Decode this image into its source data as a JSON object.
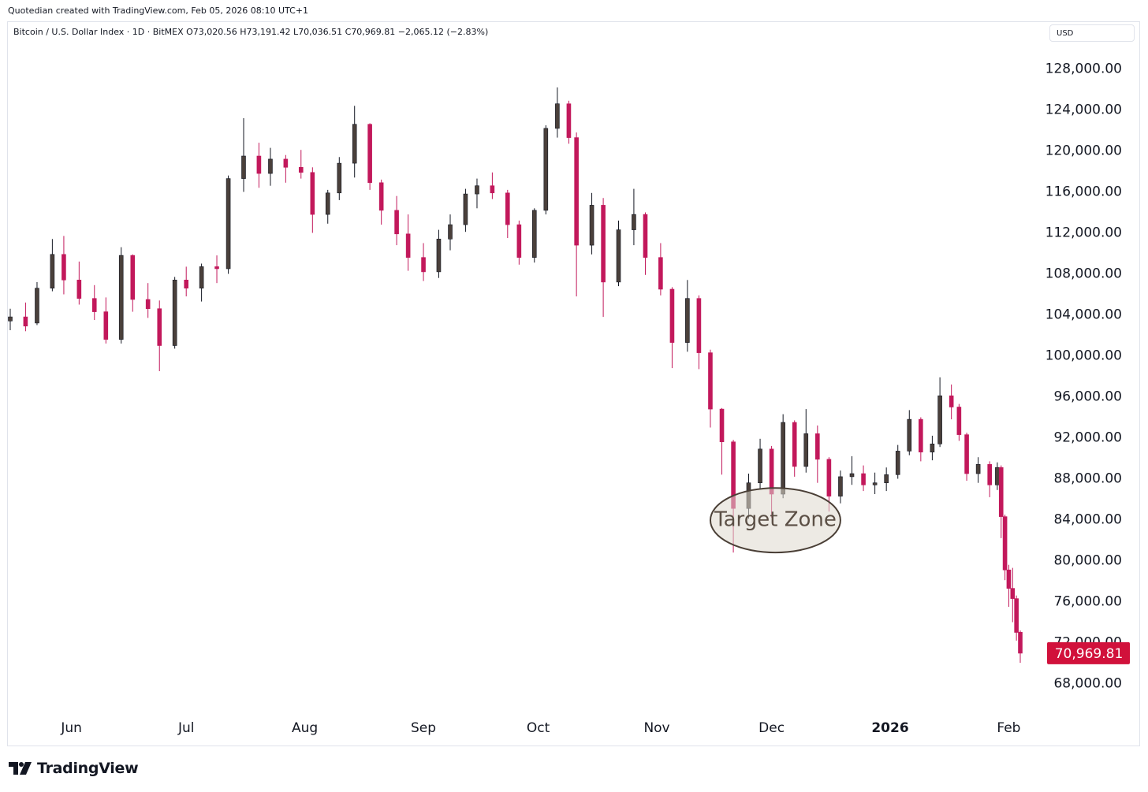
{
  "header": {
    "credit": "Quotedian created with TradingView.com, Feb 05, 2026 08:10 UTC+1",
    "symbol_line": "Bitcoin / U.S. Dollar Index · 1D · BitMEX  O73,020.56  H73,191.42  L70,036.51  C70,969.81  −2,065.12 (−2.83%)",
    "currency": "USD"
  },
  "footer": {
    "logo_text": "TradingView"
  },
  "colors": {
    "up": "#131722",
    "down": "#c2185b",
    "last_price_bg": "#d1113b",
    "grid": "#ffffff"
  },
  "chart_data": {
    "type": "candlestick",
    "title": "Bitcoin / U.S. Dollar Index · 1D · BitMEX",
    "last_price": {
      "value": 70969.81,
      "label": "70,969.81"
    },
    "ylim": [
      65500,
      130500
    ],
    "y_ticks": [
      68000,
      72000,
      76000,
      80000,
      84000,
      88000,
      92000,
      96000,
      100000,
      104000,
      108000,
      112000,
      116000,
      120000,
      124000,
      128000
    ],
    "y_tick_labels": [
      "68,000.00",
      "72,000.00",
      "76,000.00",
      "80,000.00",
      "84,000.00",
      "88,000.00",
      "92,000.00",
      "96,000.00",
      "100,000.00",
      "104,000.00",
      "108,000.00",
      "112,000.00",
      "116,000.00",
      "120,000.00",
      "124,000.00",
      "128,000.00"
    ],
    "x_labels": [
      {
        "label": "Jun",
        "date": "2025-06-01",
        "bold": false
      },
      {
        "label": "Jul",
        "date": "2025-07-01",
        "bold": false
      },
      {
        "label": "Aug",
        "date": "2025-08-01",
        "bold": false
      },
      {
        "label": "Sep",
        "date": "2025-09-01",
        "bold": false
      },
      {
        "label": "Oct",
        "date": "2025-10-01",
        "bold": false
      },
      {
        "label": "Nov",
        "date": "2025-11-01",
        "bold": false
      },
      {
        "label": "Dec",
        "date": "2025-12-01",
        "bold": false
      },
      {
        "label": "2026",
        "date": "2026-01-01",
        "bold": true
      },
      {
        "label": "Feb",
        "date": "2026-02-01",
        "bold": false
      }
    ],
    "x_range": [
      "2025-05-16",
      "2026-02-04"
    ],
    "annotation": {
      "text": "Target Zone",
      "date_from": "2025-11-15",
      "date_to": "2025-12-19",
      "price_low": 80800,
      "price_high": 87100
    },
    "series": [
      {
        "date": "2025-05-16",
        "open": 103400,
        "high": 104600,
        "low": 102500,
        "close": 103800
      },
      {
        "date": "2025-05-20",
        "open": 103800,
        "high": 105200,
        "low": 102400,
        "close": 102900
      },
      {
        "date": "2025-05-23",
        "open": 103200,
        "high": 107200,
        "low": 103000,
        "close": 106600
      },
      {
        "date": "2025-05-27",
        "open": 106600,
        "high": 111400,
        "low": 106300,
        "close": 109900
      },
      {
        "date": "2025-05-30",
        "open": 109900,
        "high": 111700,
        "low": 106000,
        "close": 107400
      },
      {
        "date": "2025-06-03",
        "open": 107400,
        "high": 109200,
        "low": 105000,
        "close": 105600
      },
      {
        "date": "2025-06-07",
        "open": 105600,
        "high": 106900,
        "low": 103500,
        "close": 104300
      },
      {
        "date": "2025-06-10",
        "open": 104300,
        "high": 105700,
        "low": 101200,
        "close": 101600
      },
      {
        "date": "2025-06-14",
        "open": 101600,
        "high": 110600,
        "low": 101200,
        "close": 109800
      },
      {
        "date": "2025-06-17",
        "open": 109800,
        "high": 109900,
        "low": 104300,
        "close": 105500
      },
      {
        "date": "2025-06-21",
        "open": 105500,
        "high": 107100,
        "low": 103700,
        "close": 104600
      },
      {
        "date": "2025-06-24",
        "open": 104600,
        "high": 105400,
        "low": 98500,
        "close": 101000
      },
      {
        "date": "2025-06-28",
        "open": 101000,
        "high": 107700,
        "low": 100700,
        "close": 107400
      },
      {
        "date": "2025-07-01",
        "open": 107400,
        "high": 108700,
        "low": 105800,
        "close": 106600
      },
      {
        "date": "2025-07-05",
        "open": 106600,
        "high": 109000,
        "low": 105300,
        "close": 108700
      },
      {
        "date": "2025-07-09",
        "open": 108700,
        "high": 109800,
        "low": 107100,
        "close": 108500
      },
      {
        "date": "2025-07-12",
        "open": 108500,
        "high": 117600,
        "low": 108000,
        "close": 117300
      },
      {
        "date": "2025-07-16",
        "open": 117300,
        "high": 123200,
        "low": 116000,
        "close": 119500
      },
      {
        "date": "2025-07-20",
        "open": 119500,
        "high": 120800,
        "low": 116400,
        "close": 117800
      },
      {
        "date": "2025-07-23",
        "open": 117800,
        "high": 120300,
        "low": 116600,
        "close": 119200
      },
      {
        "date": "2025-07-27",
        "open": 119200,
        "high": 119600,
        "low": 116900,
        "close": 118400
      },
      {
        "date": "2025-07-31",
        "open": 118400,
        "high": 120100,
        "low": 117300,
        "close": 117900
      },
      {
        "date": "2025-08-03",
        "open": 117900,
        "high": 118400,
        "low": 112000,
        "close": 113800
      },
      {
        "date": "2025-08-07",
        "open": 113800,
        "high": 116200,
        "low": 112900,
        "close": 115900
      },
      {
        "date": "2025-08-10",
        "open": 115900,
        "high": 119400,
        "low": 115200,
        "close": 118800
      },
      {
        "date": "2025-08-14",
        "open": 118800,
        "high": 124400,
        "low": 117400,
        "close": 122600
      },
      {
        "date": "2025-08-18",
        "open": 122600,
        "high": 122700,
        "low": 116200,
        "close": 116900
      },
      {
        "date": "2025-08-21",
        "open": 116900,
        "high": 117200,
        "low": 112800,
        "close": 114200
      },
      {
        "date": "2025-08-25",
        "open": 114200,
        "high": 115600,
        "low": 110800,
        "close": 111900
      },
      {
        "date": "2025-08-28",
        "open": 111900,
        "high": 113800,
        "low": 108300,
        "close": 109600
      },
      {
        "date": "2025-09-01",
        "open": 109600,
        "high": 111000,
        "low": 107300,
        "close": 108200
      },
      {
        "date": "2025-09-05",
        "open": 108200,
        "high": 112300,
        "low": 107600,
        "close": 111400
      },
      {
        "date": "2025-09-08",
        "open": 111400,
        "high": 113800,
        "low": 110300,
        "close": 112800
      },
      {
        "date": "2025-09-12",
        "open": 112800,
        "high": 116300,
        "low": 112100,
        "close": 115800
      },
      {
        "date": "2025-09-15",
        "open": 115800,
        "high": 117300,
        "low": 114400,
        "close": 116600
      },
      {
        "date": "2025-09-19",
        "open": 116600,
        "high": 117900,
        "low": 115300,
        "close": 115900
      },
      {
        "date": "2025-09-23",
        "open": 115900,
        "high": 116200,
        "low": 111500,
        "close": 112800
      },
      {
        "date": "2025-09-26",
        "open": 112800,
        "high": 113200,
        "low": 108900,
        "close": 109600
      },
      {
        "date": "2025-09-30",
        "open": 109600,
        "high": 114400,
        "low": 109100,
        "close": 114200
      },
      {
        "date": "2025-10-03",
        "open": 114200,
        "high": 122500,
        "low": 113800,
        "close": 122200
      },
      {
        "date": "2025-10-06",
        "open": 122200,
        "high": 126200,
        "low": 121300,
        "close": 124600
      },
      {
        "date": "2025-10-09",
        "open": 124600,
        "high": 124900,
        "low": 120700,
        "close": 121300
      },
      {
        "date": "2025-10-11",
        "open": 121300,
        "high": 121800,
        "low": 105800,
        "close": 110800
      },
      {
        "date": "2025-10-15",
        "open": 110800,
        "high": 115900,
        "low": 109900,
        "close": 114700
      },
      {
        "date": "2025-10-18",
        "open": 114700,
        "high": 115400,
        "low": 103800,
        "close": 107200
      },
      {
        "date": "2025-10-22",
        "open": 107200,
        "high": 113200,
        "low": 106800,
        "close": 112300
      },
      {
        "date": "2025-10-26",
        "open": 112300,
        "high": 116300,
        "low": 110800,
        "close": 113800
      },
      {
        "date": "2025-10-29",
        "open": 113800,
        "high": 114000,
        "low": 107900,
        "close": 109600
      },
      {
        "date": "2025-11-02",
        "open": 109600,
        "high": 111000,
        "low": 105900,
        "close": 106500
      },
      {
        "date": "2025-11-05",
        "open": 106500,
        "high": 106700,
        "low": 98800,
        "close": 101300
      },
      {
        "date": "2025-11-09",
        "open": 101300,
        "high": 107400,
        "low": 100400,
        "close": 105600
      },
      {
        "date": "2025-11-12",
        "open": 105600,
        "high": 105900,
        "low": 98700,
        "close": 100300
      },
      {
        "date": "2025-11-15",
        "open": 100300,
        "high": 100600,
        "low": 93000,
        "close": 94800
      },
      {
        "date": "2025-11-18",
        "open": 94800,
        "high": 94900,
        "low": 88400,
        "close": 91600
      },
      {
        "date": "2025-11-21",
        "open": 91600,
        "high": 91800,
        "low": 80800,
        "close": 85100
      },
      {
        "date": "2025-11-25",
        "open": 85100,
        "high": 88500,
        "low": 84100,
        "close": 87600
      },
      {
        "date": "2025-11-28",
        "open": 87600,
        "high": 91900,
        "low": 87000,
        "close": 90900
      },
      {
        "date": "2025-12-01",
        "open": 90900,
        "high": 91200,
        "low": 84200,
        "close": 86500
      },
      {
        "date": "2025-12-04",
        "open": 86500,
        "high": 94300,
        "low": 86100,
        "close": 93500
      },
      {
        "date": "2025-12-07",
        "open": 93500,
        "high": 93700,
        "low": 88200,
        "close": 89200
      },
      {
        "date": "2025-12-10",
        "open": 89200,
        "high": 94800,
        "low": 88600,
        "close": 92400
      },
      {
        "date": "2025-12-13",
        "open": 92400,
        "high": 93200,
        "low": 87600,
        "close": 89900
      },
      {
        "date": "2025-12-16",
        "open": 89900,
        "high": 90100,
        "low": 84800,
        "close": 86300
      },
      {
        "date": "2025-12-19",
        "open": 86300,
        "high": 88800,
        "low": 85600,
        "close": 88200
      },
      {
        "date": "2025-12-22",
        "open": 88200,
        "high": 90200,
        "low": 87400,
        "close": 88500
      },
      {
        "date": "2025-12-25",
        "open": 88500,
        "high": 89300,
        "low": 86800,
        "close": 87400
      },
      {
        "date": "2025-12-28",
        "open": 87400,
        "high": 88600,
        "low": 86500,
        "close": 87600
      },
      {
        "date": "2025-12-31",
        "open": 87600,
        "high": 89100,
        "low": 86800,
        "close": 88400
      },
      {
        "date": "2026-01-03",
        "open": 88400,
        "high": 91300,
        "low": 88000,
        "close": 90700
      },
      {
        "date": "2026-01-06",
        "open": 90700,
        "high": 94700,
        "low": 90300,
        "close": 93800
      },
      {
        "date": "2026-01-09",
        "open": 93800,
        "high": 94000,
        "low": 89700,
        "close": 90600
      },
      {
        "date": "2026-01-12",
        "open": 90600,
        "high": 92200,
        "low": 89800,
        "close": 91400
      },
      {
        "date": "2026-01-14",
        "open": 91400,
        "high": 97900,
        "low": 91100,
        "close": 96100
      },
      {
        "date": "2026-01-17",
        "open": 96100,
        "high": 97200,
        "low": 93800,
        "close": 95000
      },
      {
        "date": "2026-01-19",
        "open": 95000,
        "high": 95300,
        "low": 91700,
        "close": 92300
      },
      {
        "date": "2026-01-21",
        "open": 92300,
        "high": 92500,
        "low": 87800,
        "close": 88500
      },
      {
        "date": "2026-01-24",
        "open": 88500,
        "high": 90100,
        "low": 87600,
        "close": 89400
      },
      {
        "date": "2026-01-27",
        "open": 89400,
        "high": 89700,
        "low": 86200,
        "close": 87400
      },
      {
        "date": "2026-01-29",
        "open": 87400,
        "high": 89600,
        "low": 86900,
        "close": 89100
      },
      {
        "date": "2026-01-30",
        "open": 89100,
        "high": 89300,
        "low": 82200,
        "close": 84300
      },
      {
        "date": "2026-01-31",
        "open": 84300,
        "high": 84500,
        "low": 78100,
        "close": 79100
      },
      {
        "date": "2026-02-01",
        "open": 79100,
        "high": 79600,
        "low": 75500,
        "close": 77300
      },
      {
        "date": "2026-02-02",
        "open": 77300,
        "high": 79300,
        "low": 74000,
        "close": 76300
      },
      {
        "date": "2026-02-03",
        "open": 76300,
        "high": 76600,
        "low": 72200,
        "close": 73000
      },
      {
        "date": "2026-02-04",
        "open": 73020.56,
        "high": 73191.42,
        "low": 70036.51,
        "close": 70969.81
      }
    ]
  }
}
